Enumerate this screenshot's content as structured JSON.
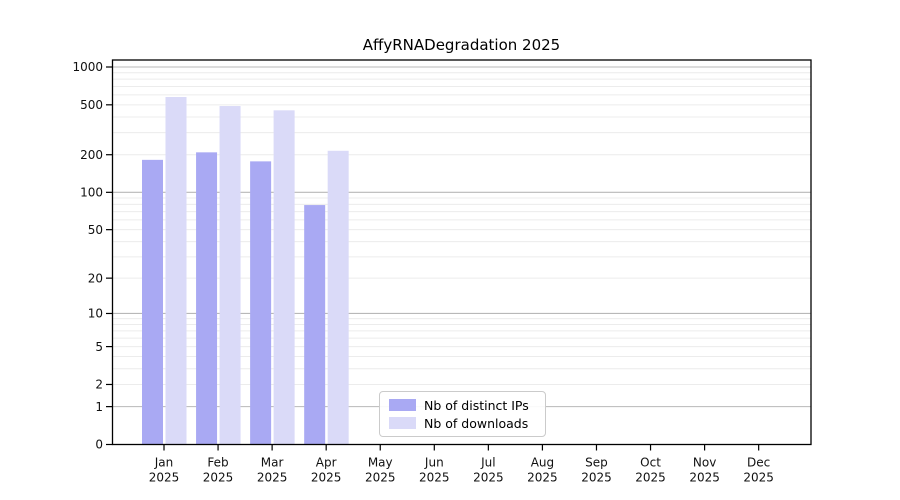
{
  "chart_data": {
    "type": "bar",
    "title": "AffyRNADegradation 2025",
    "year_label": "2025",
    "categories": [
      "Jan",
      "Feb",
      "Mar",
      "Apr",
      "May",
      "Jun",
      "Jul",
      "Aug",
      "Sep",
      "Oct",
      "Nov",
      "Dec"
    ],
    "series": [
      {
        "name": "Nb of distinct IPs",
        "color": "#a9a9f3",
        "values": [
          182,
          209,
          177,
          79,
          0,
          0,
          0,
          0,
          0,
          0,
          0,
          0
        ]
      },
      {
        "name": "Nb of downloads",
        "color": "#dadaf8",
        "values": [
          577,
          489,
          452,
          215,
          0,
          0,
          0,
          0,
          0,
          0,
          0,
          0
        ]
      }
    ],
    "y_axis": {
      "scale": "log1p",
      "ticks": [
        1000,
        500,
        200,
        100,
        50,
        20,
        10,
        5,
        2,
        1,
        0
      ],
      "major_gridlines": [
        1,
        10,
        100,
        1000
      ],
      "minor_gridlines": [
        2,
        3,
        4,
        5,
        6,
        7,
        8,
        9,
        20,
        30,
        40,
        50,
        60,
        70,
        80,
        90,
        200,
        300,
        400,
        500,
        600,
        700,
        800,
        900
      ],
      "max": 1000
    },
    "grid": true,
    "legend": {
      "position": "lower-center",
      "entries": [
        "Nb of distinct IPs",
        "Nb of downloads"
      ]
    }
  },
  "colors": {
    "bar_ips": "#a9a9f3",
    "bar_downloads": "#dadaf8",
    "major_grid": "#b8b8b8",
    "minor_grid": "#ececec",
    "frame": "#000000",
    "text": "#111111",
    "background": "#ffffff"
  }
}
